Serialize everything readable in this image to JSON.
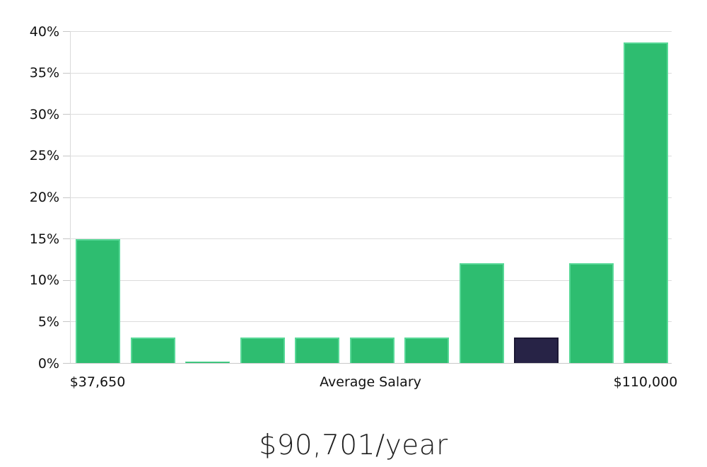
{
  "chart_data": {
    "type": "bar",
    "title": "$90,701/year",
    "xlabel": "Average Salary",
    "ylabel": "",
    "x_axis_labels": {
      "min": "$37,650",
      "center": "Average Salary",
      "max": "$110,000"
    },
    "y_tick_labels": [
      "40%",
      "35%",
      "30%",
      "25%",
      "20%",
      "15%",
      "10%",
      "5%",
      "0%"
    ],
    "y_tick_values": [
      40,
      35,
      30,
      25,
      20,
      15,
      10,
      5,
      0
    ],
    "ylim": [
      0,
      40
    ],
    "grid": true,
    "legend": false,
    "values": [
      14.9,
      3.1,
      0.15,
      3.1,
      3.1,
      3.1,
      3.1,
      12,
      3.1,
      12,
      38.6
    ],
    "highlighted_bar_index": 8,
    "colors": {
      "bar_fill": "#2ebd70",
      "bar_edge": "#58d897",
      "highlight_fill": "#272346",
      "highlight_edge": "#1b1733",
      "grid": "#dcdcdc",
      "axis": "#c9c9c9",
      "text": "#111111"
    }
  }
}
